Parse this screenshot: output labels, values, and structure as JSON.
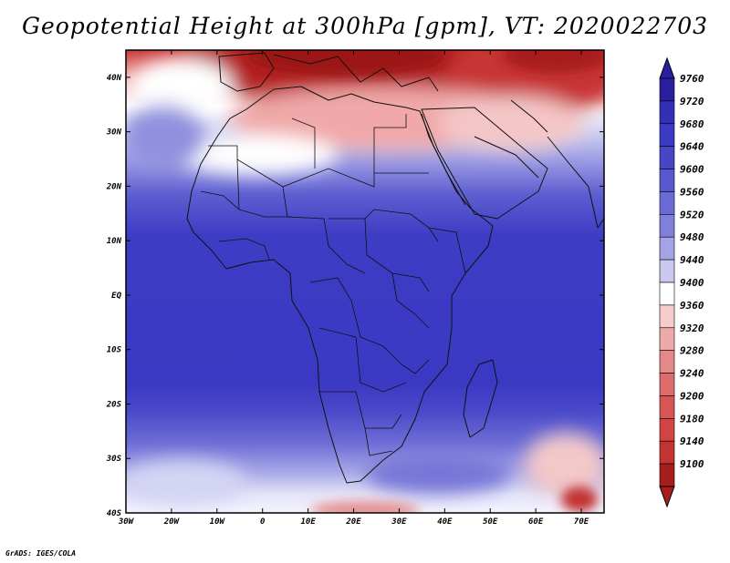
{
  "title": "Geopotential Height at 300hPa [gpm], VT: 2020022703",
  "footer": "GrADS: IGES/COLA",
  "colors": {
    "ocean_base": "#3a37c4",
    "coast": "#111111",
    "border": "#111111"
  },
  "map": {
    "lon_range": [
      -30,
      75
    ],
    "lat_range": [
      -40,
      45
    ],
    "lat_ticks": [
      {
        "value": 40,
        "label": "40N"
      },
      {
        "value": 30,
        "label": "30N"
      },
      {
        "value": 20,
        "label": "20N"
      },
      {
        "value": 10,
        "label": "10N"
      },
      {
        "value": 0,
        "label": "EQ"
      },
      {
        "value": -10,
        "label": "10S"
      },
      {
        "value": -20,
        "label": "20S"
      },
      {
        "value": -30,
        "label": "30S"
      },
      {
        "value": -40,
        "label": "40S"
      }
    ],
    "lon_ticks": [
      {
        "value": -30,
        "label": "30W"
      },
      {
        "value": -20,
        "label": "20W"
      },
      {
        "value": -10,
        "label": "10W"
      },
      {
        "value": 0,
        "label": "0"
      },
      {
        "value": 10,
        "label": "10E"
      },
      {
        "value": 20,
        "label": "20E"
      },
      {
        "value": 30,
        "label": "30E"
      },
      {
        "value": 40,
        "label": "40E"
      },
      {
        "value": 50,
        "label": "50E"
      },
      {
        "value": 60,
        "label": "60E"
      },
      {
        "value": 70,
        "label": "70E"
      }
    ]
  },
  "colorbar": {
    "levels": [
      {
        "label": "9760",
        "color": "#2a1f9e"
      },
      {
        "label": "9720",
        "color": "#3330b8"
      },
      {
        "label": "9680",
        "color": "#3a3ac4"
      },
      {
        "label": "9640",
        "color": "#4646c9"
      },
      {
        "label": "9600",
        "color": "#5858cf"
      },
      {
        "label": "9560",
        "color": "#6b6bd6"
      },
      {
        "label": "9520",
        "color": "#8080dc"
      },
      {
        "label": "9480",
        "color": "#a3a3e6"
      },
      {
        "label": "9440",
        "color": "#c9c9f0"
      },
      {
        "label": "9400",
        "color": "#ffffff"
      },
      {
        "label": "9360",
        "color": "#f6cccc"
      },
      {
        "label": "9320",
        "color": "#eeaaaa"
      },
      {
        "label": "9280",
        "color": "#e58888"
      },
      {
        "label": "9240",
        "color": "#de6c6c"
      },
      {
        "label": "9200",
        "color": "#d85555"
      },
      {
        "label": "9180",
        "color": "#d04444"
      },
      {
        "label": "9140",
        "color": "#c43232"
      },
      {
        "label": "9100",
        "color": "#a61e1e"
      }
    ]
  }
}
